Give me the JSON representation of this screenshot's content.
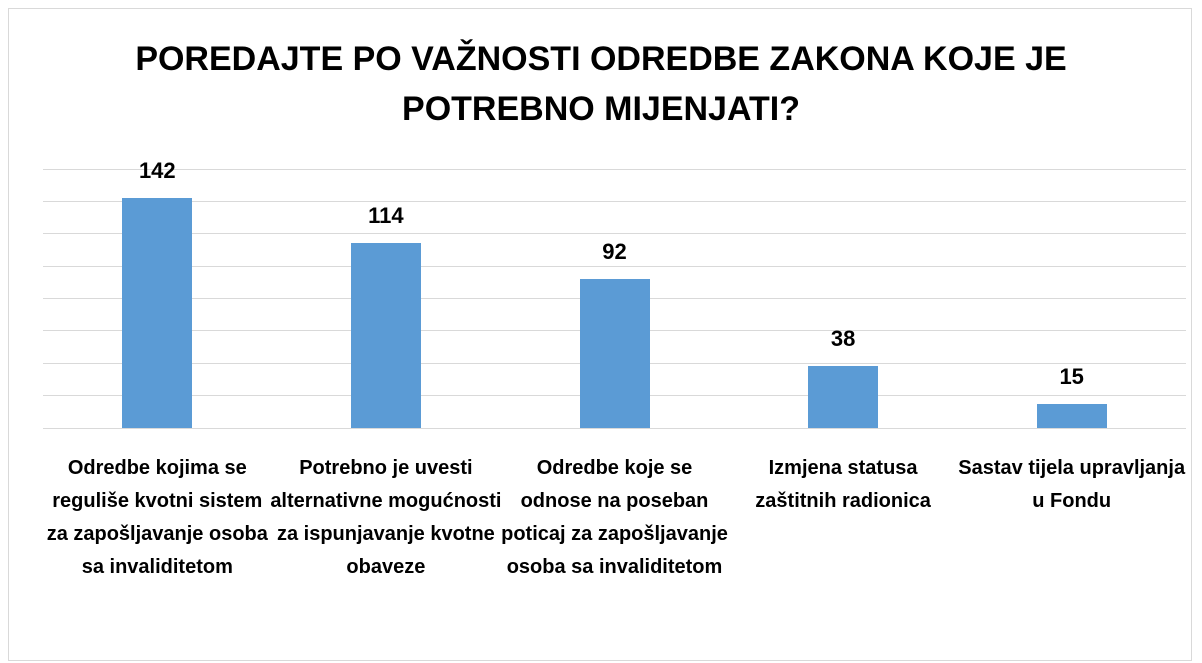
{
  "chart_data": {
    "type": "bar",
    "title": "POREDAJTE PO VAŽNOSTI ODREDBE ZAKONA KOJE JE POTREBNO MIJENJATI?",
    "categories": [
      "Odredbe kojima se reguliše kvotni sistem za zapošljavanje osoba sa invaliditetom",
      "Potrebno je uvesti alternativne mogućnosti za ispunjavanje kvotne obaveze",
      "Odredbe koje se odnose na poseban poticaj za zapošljavanje osoba sa invaliditetom",
      "Izmjena statusa zaštitnih radionica",
      "Sastav tijela upravljanja u Fondu"
    ],
    "values": [
      142,
      114,
      92,
      38,
      15
    ],
    "color": "#5b9bd5",
    "ylim": [
      0,
      160
    ],
    "yticks": [
      0,
      20,
      40,
      60,
      80,
      100,
      120,
      140,
      160
    ],
    "grid": true
  }
}
